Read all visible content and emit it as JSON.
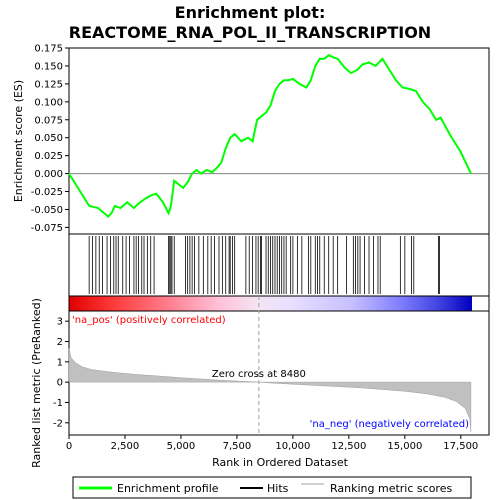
{
  "chart_data": [
    {
      "type": "line",
      "title": "Enrichment plot: REACTOME_RNA_POL_II_TRANSCRIPTION",
      "ylabel": "Enrichment score (ES)",
      "xlim": [
        0,
        18000
      ],
      "ylim": [
        -0.08,
        0.175
      ],
      "yticks": [
        "0.175",
        "0.150",
        "0.125",
        "0.100",
        "0.075",
        "0.050",
        "0.025",
        "0.000",
        "-0.025",
        "-0.050",
        "-0.075"
      ],
      "ytick_values": [
        0.175,
        0.15,
        0.125,
        0.1,
        0.075,
        0.05,
        0.025,
        0,
        -0.025,
        -0.05,
        -0.075
      ],
      "series": [
        {
          "name": "Enrichment profile",
          "color": "#00ff00",
          "points": [
            [
              0,
              0.0
            ],
            [
              900,
              -0.045
            ],
            [
              1300,
              -0.048
            ],
            [
              1750,
              -0.06
            ],
            [
              1900,
              -0.055
            ],
            [
              2050,
              -0.045
            ],
            [
              2300,
              -0.048
            ],
            [
              2600,
              -0.04
            ],
            [
              2900,
              -0.048
            ],
            [
              3100,
              -0.042
            ],
            [
              3400,
              -0.035
            ],
            [
              3700,
              -0.03
            ],
            [
              3900,
              -0.028
            ],
            [
              4200,
              -0.04
            ],
            [
              4450,
              -0.055
            ],
            [
              4550,
              -0.045
            ],
            [
              4700,
              -0.01
            ],
            [
              4900,
              -0.015
            ],
            [
              5100,
              -0.02
            ],
            [
              5300,
              -0.012
            ],
            [
              5500,
              0.0
            ],
            [
              5700,
              0.005
            ],
            [
              5900,
              0.0
            ],
            [
              6150,
              0.005
            ],
            [
              6400,
              0.002
            ],
            [
              6600,
              0.008
            ],
            [
              6800,
              0.015
            ],
            [
              7000,
              0.035
            ],
            [
              7200,
              0.05
            ],
            [
              7400,
              0.055
            ],
            [
              7700,
              0.045
            ],
            [
              8000,
              0.05
            ],
            [
              8200,
              0.045
            ],
            [
              8400,
              0.075
            ],
            [
              8600,
              0.08
            ],
            [
              8800,
              0.085
            ],
            [
              9000,
              0.095
            ],
            [
              9200,
              0.115
            ],
            [
              9400,
              0.125
            ],
            [
              9600,
              0.13
            ],
            [
              9800,
              0.13
            ],
            [
              10000,
              0.132
            ],
            [
              10300,
              0.125
            ],
            [
              10600,
              0.12
            ],
            [
              10800,
              0.13
            ],
            [
              11000,
              0.15
            ],
            [
              11200,
              0.16
            ],
            [
              11400,
              0.16
            ],
            [
              11600,
              0.165
            ],
            [
              11800,
              0.162
            ],
            [
              12000,
              0.16
            ],
            [
              12300,
              0.148
            ],
            [
              12600,
              0.14
            ],
            [
              12900,
              0.145
            ],
            [
              13100,
              0.152
            ],
            [
              13400,
              0.155
            ],
            [
              13700,
              0.15
            ],
            [
              14000,
              0.16
            ],
            [
              14300,
              0.145
            ],
            [
              14600,
              0.13
            ],
            [
              14900,
              0.12
            ],
            [
              15200,
              0.118
            ],
            [
              15500,
              0.115
            ],
            [
              15800,
              0.1
            ],
            [
              16100,
              0.09
            ],
            [
              16400,
              0.075
            ],
            [
              16600,
              0.078
            ],
            [
              17000,
              0.055
            ],
            [
              17500,
              0.03
            ],
            [
              17950,
              0.0
            ]
          ]
        }
      ],
      "reference_line": 0.0,
      "grid": false,
      "legend": "bottom"
    },
    {
      "type": "line",
      "title": "",
      "series": [
        {
          "name": "Hits",
          "color": "#000000",
          "x": [
            900,
            1050,
            1200,
            1350,
            1500,
            1700,
            1850,
            2000,
            2100,
            2200,
            2400,
            2550,
            2700,
            2900,
            3000,
            3100,
            3250,
            3350,
            3500,
            3650,
            3800,
            4450,
            4500,
            4550,
            4600,
            4700,
            5200,
            5300,
            5400,
            5500,
            5600,
            5800,
            6000,
            6200,
            6350,
            6500,
            6700,
            6850,
            7000,
            7150,
            7200,
            7300,
            7400,
            7900,
            8050,
            8200,
            8350,
            8450,
            8550,
            8600,
            8800,
            8900,
            9000,
            9100,
            9200,
            9300,
            9400,
            9500,
            9600,
            9700,
            9900,
            10000,
            10200,
            10400,
            10700,
            10800,
            11000,
            11100,
            11200,
            11400,
            11600,
            11800,
            12000,
            12400,
            12700,
            12800,
            12900,
            13000,
            13200,
            13400,
            13600,
            13800,
            13900,
            14800,
            15000,
            15300,
            15400,
            16500,
            16550
          ]
        }
      ],
      "ylim": [
        0,
        1
      ],
      "xlim": [
        0,
        18000
      ]
    },
    {
      "type": "heatmap",
      "title": "",
      "description_colors": [
        "#ff0000",
        "#ffffff",
        "#0000ff"
      ],
      "xlim": [
        0,
        18000
      ],
      "zero_position": 8480
    },
    {
      "type": "area",
      "title": "",
      "xlabel": "Rank in Ordered Dataset",
      "ylabel": "Ranked list metric (PreRanked)",
      "xlim": [
        0,
        18000
      ],
      "ylim": [
        -2.6,
        3.5
      ],
      "xticks": [
        "0",
        "2,500",
        "5,000",
        "7,500",
        "10,000",
        "12,500",
        "15,000",
        "17,500"
      ],
      "xtick_values": [
        0,
        2500,
        5000,
        7500,
        10000,
        12500,
        15000,
        17500
      ],
      "yticks": [
        "3",
        "2",
        "1",
        "0",
        "-1",
        "-2"
      ],
      "ytick_values": [
        3,
        2,
        1,
        0,
        -1,
        -2
      ],
      "series": [
        {
          "name": "Ranking metric scores",
          "color": "#c0c0c0",
          "points": [
            [
              0,
              1.65
            ],
            [
              100,
              1.2
            ],
            [
              300,
              0.95
            ],
            [
              600,
              0.75
            ],
            [
              1000,
              0.62
            ],
            [
              2000,
              0.48
            ],
            [
              3000,
              0.38
            ],
            [
              4000,
              0.3
            ],
            [
              5000,
              0.22
            ],
            [
              6000,
              0.15
            ],
            [
              7000,
              0.08
            ],
            [
              8000,
              0.03
            ],
            [
              8480,
              0.0
            ],
            [
              9000,
              -0.04
            ],
            [
              10000,
              -0.1
            ],
            [
              11000,
              -0.16
            ],
            [
              12000,
              -0.22
            ],
            [
              13000,
              -0.28
            ],
            [
              14000,
              -0.36
            ],
            [
              15000,
              -0.45
            ],
            [
              16000,
              -0.58
            ],
            [
              16800,
              -0.75
            ],
            [
              17300,
              -0.95
            ],
            [
              17700,
              -1.3
            ],
            [
              17900,
              -1.8
            ],
            [
              17950,
              -2.45
            ]
          ]
        }
      ],
      "annotations": [
        {
          "text": "'na_pos' (positively correlated)",
          "color": "#ff0000",
          "x": 0,
          "y": 3.1
        },
        {
          "text": "Zero cross at 8480",
          "color": "#000000",
          "x": 8480,
          "y": 0.25
        },
        {
          "text": "'na_neg' (negatively correlated)",
          "color": "#0000ff",
          "x": 12000,
          "y": -2.0
        }
      ]
    }
  ],
  "legend": {
    "items": [
      {
        "label": "Enrichment profile",
        "color": "#00ff00"
      },
      {
        "label": "Hits",
        "color": "#000000"
      },
      {
        "label": "Ranking metric scores",
        "color": "#c0c0c0"
      }
    ]
  }
}
